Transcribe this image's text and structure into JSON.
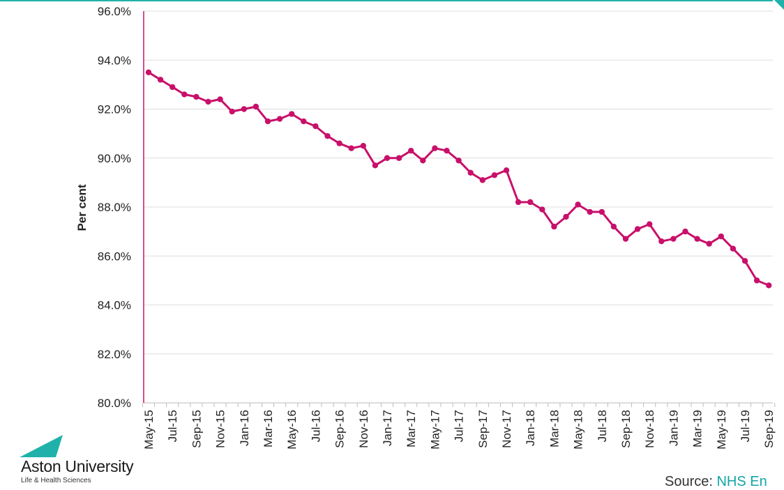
{
  "chart_data": {
    "type": "line",
    "title": "",
    "xlabel": "",
    "ylabel": "Per cent",
    "ylim": [
      80,
      96
    ],
    "y_ticks": [
      "80.0%",
      "82.0%",
      "84.0%",
      "86.0%",
      "88.0%",
      "90.0%",
      "92.0%",
      "94.0%",
      "96.0%"
    ],
    "grid": true,
    "legend": "none",
    "color": "#c8106a",
    "x": [
      "May-15",
      "Jun-15",
      "Jul-15",
      "Aug-15",
      "Sep-15",
      "Oct-15",
      "Nov-15",
      "Dec-15",
      "Jan-16",
      "Feb-16",
      "Mar-16",
      "Apr-16",
      "May-16",
      "Jun-16",
      "Jul-16",
      "Aug-16",
      "Sep-16",
      "Oct-16",
      "Nov-16",
      "Dec-16",
      "Jan-17",
      "Feb-17",
      "Mar-17",
      "Apr-17",
      "May-17",
      "Jun-17",
      "Jul-17",
      "Aug-17",
      "Sep-17",
      "Oct-17",
      "Nov-17",
      "Dec-17",
      "Jan-18",
      "Feb-18",
      "Mar-18",
      "Apr-18",
      "May-18",
      "Jun-18",
      "Jul-18",
      "Aug-18",
      "Sep-18",
      "Oct-18",
      "Nov-18",
      "Dec-18",
      "Jan-19",
      "Feb-19",
      "Mar-19",
      "Apr-19",
      "May-19",
      "Jun-19",
      "Jul-19",
      "Aug-19",
      "Sep-19"
    ],
    "x_tick_labels": [
      "May-15",
      "Jul-15",
      "Sep-15",
      "Nov-15",
      "Jan-16",
      "Mar-16",
      "May-16",
      "Jul-16",
      "Sep-16",
      "Nov-16",
      "Jan-17",
      "Mar-17",
      "May-17",
      "Jul-17",
      "Sep-17",
      "Nov-17",
      "Jan-18",
      "Mar-18",
      "May-18",
      "Jul-18",
      "Sep-18",
      "Nov-18",
      "Jan-19",
      "Mar-19",
      "May-19",
      "Jul-19",
      "Sep-19"
    ],
    "values": [
      93.5,
      93.2,
      92.9,
      92.6,
      92.5,
      92.3,
      92.4,
      91.9,
      92.0,
      92.1,
      91.5,
      91.6,
      91.8,
      91.5,
      91.3,
      90.9,
      90.6,
      90.4,
      90.5,
      89.7,
      90.0,
      90.0,
      90.3,
      89.9,
      90.4,
      90.3,
      89.9,
      89.4,
      89.1,
      89.3,
      89.5,
      88.2,
      88.2,
      87.9,
      87.2,
      87.6,
      88.1,
      87.8,
      87.8,
      87.2,
      86.7,
      87.1,
      87.3,
      86.6,
      86.7,
      87.0,
      86.7,
      86.5,
      86.8,
      86.3,
      85.8,
      85.0,
      84.8
    ]
  },
  "branding": {
    "name": "Aston University",
    "subtitle": "Life & Health Sciences",
    "logo_color": "#20b2aa"
  },
  "source": {
    "prefix": "Source: ",
    "link": "NHS En",
    "link_color": "#10a5a5"
  }
}
